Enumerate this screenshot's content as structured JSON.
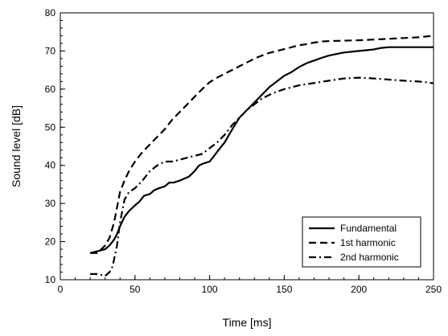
{
  "chart_data": {
    "type": "line",
    "xlabel": "Time [ms]",
    "ylabel": "Sound level [dB]",
    "xlim": [
      0,
      250
    ],
    "ylim": [
      10,
      80
    ],
    "xticks": [
      0,
      50,
      100,
      150,
      200,
      250
    ],
    "yticks": [
      10,
      20,
      30,
      40,
      50,
      60,
      70,
      80
    ],
    "x_minor_step": 10,
    "y_minor_step": 2,
    "grid": false,
    "legend_position": "bottom-right",
    "series": [
      {
        "name": "Fundamental",
        "dash": "solid",
        "points": [
          [
            20,
            17
          ],
          [
            25,
            17.5
          ],
          [
            30,
            18
          ],
          [
            33,
            19
          ],
          [
            36,
            20.5
          ],
          [
            38,
            22
          ],
          [
            40,
            24
          ],
          [
            43,
            26.5
          ],
          [
            46,
            28
          ],
          [
            50,
            29.5
          ],
          [
            53,
            30.5
          ],
          [
            56,
            32
          ],
          [
            60,
            32.5
          ],
          [
            63,
            33.5
          ],
          [
            66,
            34
          ],
          [
            70,
            34.5
          ],
          [
            73,
            35.5
          ],
          [
            76,
            35.5
          ],
          [
            80,
            36
          ],
          [
            83,
            36.5
          ],
          [
            86,
            37
          ],
          [
            90,
            38.5
          ],
          [
            93,
            40
          ],
          [
            96,
            40.5
          ],
          [
            100,
            41
          ],
          [
            103,
            42.5
          ],
          [
            106,
            44
          ],
          [
            110,
            46
          ],
          [
            113,
            48
          ],
          [
            116,
            50
          ],
          [
            120,
            52.5
          ],
          [
            125,
            54.5
          ],
          [
            130,
            56.5
          ],
          [
            135,
            58.5
          ],
          [
            140,
            60.5
          ],
          [
            145,
            62
          ],
          [
            150,
            63.5
          ],
          [
            155,
            64.5
          ],
          [
            160,
            65.8
          ],
          [
            165,
            66.8
          ],
          [
            170,
            67.5
          ],
          [
            175,
            68.2
          ],
          [
            180,
            68.8
          ],
          [
            185,
            69.2
          ],
          [
            190,
            69.6
          ],
          [
            195,
            69.8
          ],
          [
            200,
            70
          ],
          [
            205,
            70.2
          ],
          [
            210,
            70.4
          ],
          [
            215,
            70.8
          ],
          [
            220,
            71
          ],
          [
            230,
            71
          ],
          [
            240,
            71
          ],
          [
            250,
            71
          ]
        ]
      },
      {
        "name": "1st harmonic",
        "dash": "dashed",
        "points": [
          [
            20,
            17
          ],
          [
            25,
            17
          ],
          [
            30,
            19
          ],
          [
            33,
            21
          ],
          [
            36,
            25
          ],
          [
            38,
            29
          ],
          [
            40,
            33
          ],
          [
            43,
            36
          ],
          [
            46,
            38.5
          ],
          [
            50,
            41
          ],
          [
            55,
            43.5
          ],
          [
            60,
            45.5
          ],
          [
            65,
            47.5
          ],
          [
            70,
            49.5
          ],
          [
            75,
            52
          ],
          [
            80,
            54
          ],
          [
            85,
            56
          ],
          [
            90,
            58
          ],
          [
            95,
            60
          ],
          [
            100,
            61.8
          ],
          [
            105,
            63
          ],
          [
            110,
            64
          ],
          [
            115,
            65
          ],
          [
            120,
            66
          ],
          [
            125,
            67
          ],
          [
            130,
            68
          ],
          [
            135,
            68.8
          ],
          [
            140,
            69.5
          ],
          [
            145,
            70
          ],
          [
            150,
            70.5
          ],
          [
            155,
            71
          ],
          [
            160,
            71.5
          ],
          [
            165,
            71.8
          ],
          [
            170,
            72.2
          ],
          [
            175,
            72.5
          ],
          [
            180,
            72.6
          ],
          [
            190,
            72.7
          ],
          [
            200,
            72.8
          ],
          [
            210,
            73
          ],
          [
            220,
            73.2
          ],
          [
            230,
            73.4
          ],
          [
            240,
            73.6
          ],
          [
            245,
            73.8
          ],
          [
            250,
            74
          ]
        ]
      },
      {
        "name": "2nd harmonic",
        "dash": "dashdot",
        "points": [
          [
            20,
            11.5
          ],
          [
            25,
            11.5
          ],
          [
            30,
            11
          ],
          [
            33,
            12
          ],
          [
            35,
            13.5
          ],
          [
            38,
            19
          ],
          [
            40,
            25
          ],
          [
            43,
            31
          ],
          [
            46,
            33
          ],
          [
            50,
            34
          ],
          [
            55,
            36
          ],
          [
            60,
            38.5
          ],
          [
            65,
            40
          ],
          [
            70,
            41
          ],
          [
            75,
            41
          ],
          [
            80,
            41.5
          ],
          [
            85,
            42
          ],
          [
            90,
            42.5
          ],
          [
            95,
            43
          ],
          [
            100,
            44.5
          ],
          [
            105,
            46
          ],
          [
            110,
            48
          ],
          [
            115,
            50.5
          ],
          [
            120,
            52.5
          ],
          [
            125,
            54.5
          ],
          [
            130,
            56
          ],
          [
            135,
            57.5
          ],
          [
            140,
            58.5
          ],
          [
            145,
            59.3
          ],
          [
            150,
            60
          ],
          [
            155,
            60.5
          ],
          [
            160,
            61
          ],
          [
            165,
            61.3
          ],
          [
            170,
            61.6
          ],
          [
            175,
            61.9
          ],
          [
            180,
            62.2
          ],
          [
            185,
            62.5
          ],
          [
            190,
            62.8
          ],
          [
            200,
            63
          ],
          [
            210,
            62.8
          ],
          [
            220,
            62.5
          ],
          [
            230,
            62.2
          ],
          [
            240,
            62
          ],
          [
            245,
            61.8
          ],
          [
            250,
            61.5
          ]
        ]
      }
    ]
  }
}
